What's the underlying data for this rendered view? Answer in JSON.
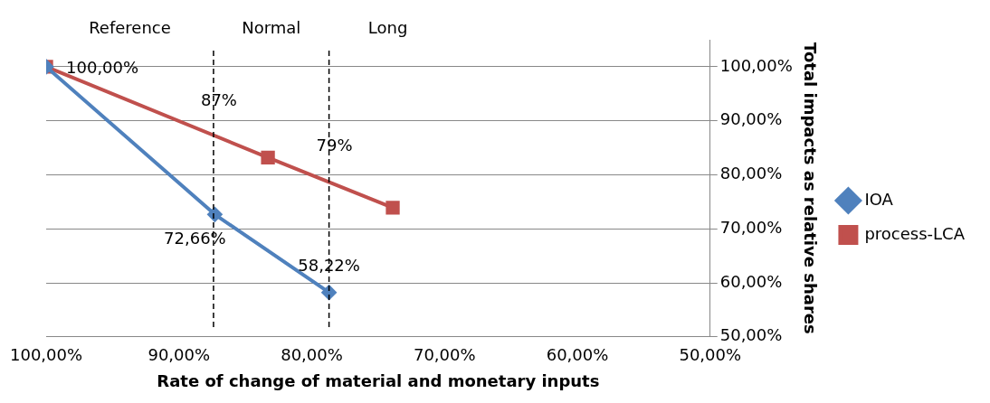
{
  "chart_data": {
    "type": "line",
    "xlabel": "Rate of change of material and monetary inputs",
    "ylabel": "Total impacts as relative shares",
    "xlim": [
      100,
      50
    ],
    "ylim": [
      50,
      105
    ],
    "xticks": [
      {
        "value": 100,
        "label": "100,00%"
      },
      {
        "value": 90,
        "label": "90,00%"
      },
      {
        "value": 80,
        "label": "80,00%"
      },
      {
        "value": 70,
        "label": "70,00%"
      },
      {
        "value": 60,
        "label": "60,00%"
      },
      {
        "value": 50,
        "label": "50,00%"
      }
    ],
    "yticks": [
      {
        "value": 50,
        "label": "50,00%"
      },
      {
        "value": 60,
        "label": "60,00%"
      },
      {
        "value": 70,
        "label": "70,00%"
      },
      {
        "value": 80,
        "label": "80,00%"
      },
      {
        "value": 90,
        "label": "90,00%"
      },
      {
        "value": 100,
        "label": "100,00%"
      }
    ],
    "grid": "y",
    "legend": "right",
    "series": [
      {
        "name": "IOA",
        "color": "#4f81bd",
        "marker": "diamond",
        "x": [
          100,
          87.3,
          78.7
        ],
        "values": [
          100,
          72.66,
          58.22
        ],
        "value_labels": [
          "100,00%",
          "72,66%",
          "58,22%"
        ]
      },
      {
        "name": "process-LCA",
        "color": "#c0504d",
        "marker": "square",
        "x": [
          100,
          83.3,
          73.9
        ],
        "values": [
          100,
          83.2,
          73.9
        ]
      }
    ],
    "ref_lines": [
      {
        "axis": "x",
        "value": 87.4,
        "label": "87%",
        "color": "#000000",
        "line_style": "dashed"
      },
      {
        "axis": "x",
        "value": 78.7,
        "label": "79%",
        "color": "#000000",
        "line_style": "dashed"
      }
    ],
    "annotations": [
      "Reference",
      "Normal",
      "Long"
    ]
  }
}
